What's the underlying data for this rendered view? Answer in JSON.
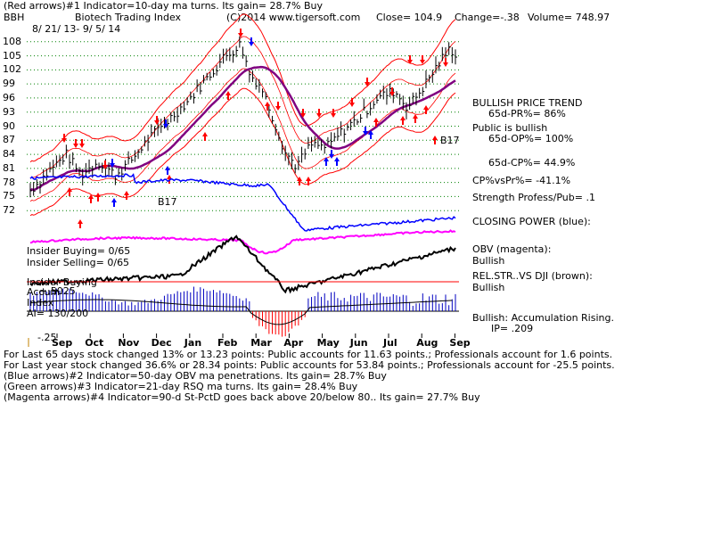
{
  "header": {
    "line1": "(Red arrows)#1 Indicator=10-day ma turns. Its gain= 28.7% Buy",
    "symbol": "BBH",
    "index_name": "Biotech Trading Index",
    "copyright": "(C)2014 www.tigersoft.com",
    "close": "Close= 104.9",
    "change": "Change=-.38",
    "volume": "Volume= 748.97",
    "date_range": "8/ 21/ 13- 9/ 5/ 14"
  },
  "right_panel": {
    "trend": "BULLISH PRICE TREND",
    "pr": "65d-PR%= 86%",
    "public": "Public is bullish",
    "op": "65d-OP%= 100%",
    "cp": "65d-CP%= 44.9%",
    "cpvspr": "CP%vsPr%= -41.1%",
    "strength": "Strength Profess/Pub= .1",
    "closing_power": "CLOSING POWER (blue):",
    "obv": "OBV (magenta):",
    "obv_state": "Bullish",
    "relstr": "REL.STR..VS DJI (brown):",
    "relstr_state": "Bullish",
    "accum": "Bullish: Accumulation Rising.",
    "ip": "IP= .209"
  },
  "left_panel": {
    "insider_buying": "Insider Buying= 0/65",
    "insider_selling": "Insider Selling= 0/65",
    "insider_buying2": "Insider Buying",
    "accum_label": "Accum",
    "index_label": "Index",
    "ai": "AI= 130/200",
    "acc_p50": "+.50",
    "acc_p25": "+.25",
    "acc_m25": "-.25"
  },
  "footer": {
    "line1": "For Last 65 days stock changed 13% or 13.23 points: Public accounts for 11.63 points.; Professionals account for 1.6 points.",
    "line2": "For Last year stock changed 36.6% or 28.34 points: Public accounts for 53.84 points.; Professionals account for -25.5 points.",
    "line3": "(Blue arrows)#2 Indicator=50-day OBV ma penetrations. Its gain= 28.7% Buy",
    "line4": "(Green arrows)#3 Indicator=21-day RSQ ma turns. Its gain= 28.4% Buy",
    "line5": "(Magenta arrows)#4 Indicator=90-d St-PctD goes back above 20/below 80.. Its gain= 27.7% Buy"
  },
  "annotations": {
    "b17_left": "B17",
    "b17_right": "B17"
  },
  "colors": {
    "price": "#000000",
    "band": "#ff0000",
    "ma": "#800080",
    "closing_power": "#0000ff",
    "obv": "#ff00ff",
    "relstr": "#000000",
    "accum_pos": "#0000c0",
    "accum_neg": "#ff0000",
    "grid": "#008000"
  },
  "chart_data": {
    "type": "line",
    "ylim": [
      69,
      111
    ],
    "y_ticks": [
      108,
      105,
      102,
      99,
      96,
      93,
      90,
      87,
      84,
      81,
      78,
      75,
      72
    ],
    "x_labels": [
      "Sep",
      "Oct",
      "Nov",
      "Dec",
      "Jan",
      "Feb",
      "Mar",
      "Apr",
      "May",
      "Jun",
      "Jul",
      "Aug",
      "Sep"
    ],
    "price_closes": [
      {
        "date": "2013-08-21",
        "close": 75.5
      },
      {
        "date": "2013-09-10",
        "close": 80.5
      },
      {
        "date": "2013-09-25",
        "close": 84.0
      },
      {
        "date": "2013-10-08",
        "close": 79.5
      },
      {
        "date": "2013-10-22",
        "close": 82.5
      },
      {
        "date": "2013-11-07",
        "close": 79.5
      },
      {
        "date": "2013-11-20",
        "close": 82.5
      },
      {
        "date": "2013-12-05",
        "close": 87.0
      },
      {
        "date": "2013-12-20",
        "close": 90.5
      },
      {
        "date": "2014-01-08",
        "close": 95.0
      },
      {
        "date": "2014-01-24",
        "close": 99.5
      },
      {
        "date": "2014-02-10",
        "close": 104.5
      },
      {
        "date": "2014-02-25",
        "close": 107.5
      },
      {
        "date": "2014-03-05",
        "close": 101.0
      },
      {
        "date": "2014-03-15",
        "close": 98.5
      },
      {
        "date": "2014-03-25",
        "close": 92.0
      },
      {
        "date": "2014-04-05",
        "close": 84.5
      },
      {
        "date": "2014-04-15",
        "close": 81.5
      },
      {
        "date": "2014-04-28",
        "close": 86.0
      },
      {
        "date": "2014-05-12",
        "close": 85.5
      },
      {
        "date": "2014-05-28",
        "close": 89.5
      },
      {
        "date": "2014-06-10",
        "close": 92.0
      },
      {
        "date": "2014-06-25",
        "close": 96.0
      },
      {
        "date": "2014-07-10",
        "close": 97.5
      },
      {
        "date": "2014-07-22",
        "close": 94.0
      },
      {
        "date": "2014-08-05",
        "close": 98.5
      },
      {
        "date": "2014-08-20",
        "close": 104.0
      },
      {
        "date": "2014-08-28",
        "close": 106.5
      },
      {
        "date": "2014-09-05",
        "close": 104.9
      }
    ]
  }
}
